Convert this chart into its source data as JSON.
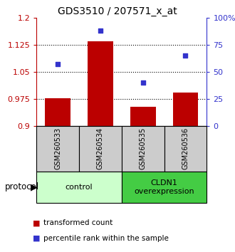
{
  "title": "GDS3510 / 207571_x_at",
  "categories": [
    "GSM260533",
    "GSM260534",
    "GSM260535",
    "GSM260536"
  ],
  "bar_values": [
    0.977,
    1.135,
    0.953,
    0.992
  ],
  "bar_baseline": 0.9,
  "blue_values": [
    57,
    88,
    40,
    65
  ],
  "ylim_left": [
    0.9,
    1.2
  ],
  "ylim_right": [
    0,
    100
  ],
  "yticks_left": [
    0.9,
    0.975,
    1.05,
    1.125,
    1.2
  ],
  "yticks_right": [
    0,
    25,
    50,
    75,
    100
  ],
  "ytick_labels_left": [
    "0.9",
    "0.975",
    "1.05",
    "1.125",
    "1.2"
  ],
  "ytick_labels_right": [
    "0",
    "25",
    "50",
    "75",
    "100%"
  ],
  "hlines": [
    0.975,
    1.05,
    1.125
  ],
  "bar_color": "#bb0000",
  "blue_color": "#3333cc",
  "protocol_label": "protocol",
  "group1_label": "control",
  "group2_label": "CLDN1\noverexpression",
  "group1_color": "#ccffcc",
  "group2_color": "#44cc44",
  "sample_box_color": "#cccccc",
  "legend_bar_label": "transformed count",
  "legend_dot_label": "percentile rank within the sample",
  "title_fontsize": 10,
  "tick_fontsize": 8,
  "legend_fontsize": 7.5,
  "sample_fontsize": 7,
  "group_fontsize": 8
}
